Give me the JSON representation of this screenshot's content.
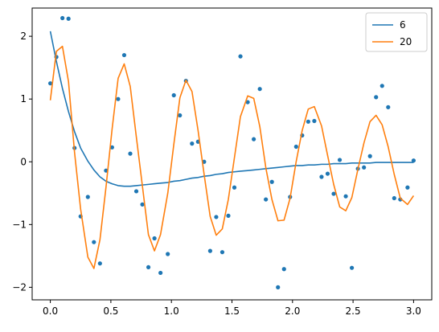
{
  "chart_data": {
    "type": "line",
    "title": "",
    "xlabel": "",
    "ylabel": "",
    "xlim": [
      -0.15,
      3.15
    ],
    "ylim": [
      -2.2,
      2.45
    ],
    "xticks": [
      0.0,
      0.5,
      1.0,
      1.5,
      2.0,
      2.5,
      3.0
    ],
    "xtick_labels": [
      "0.0",
      "0.5",
      "1.0",
      "1.5",
      "2.0",
      "2.5",
      "3.0"
    ],
    "yticks": [
      -2,
      -1,
      0,
      1,
      2
    ],
    "ytick_labels": [
      "−2",
      "−1",
      "0",
      "1",
      "2"
    ],
    "grid": false,
    "legend": {
      "placement": "top-right",
      "entries": [
        "6",
        "20"
      ]
    },
    "colors": {
      "series1": "#1f77b4",
      "series2": "#ff7f0e"
    },
    "scatter": {
      "color": "#1f77b4",
      "points": [
        [
          0.0,
          1.25
        ],
        [
          0.05,
          1.67
        ],
        [
          0.1,
          2.29
        ],
        [
          0.15,
          2.28
        ],
        [
          0.2,
          0.22
        ],
        [
          0.25,
          -0.87
        ],
        [
          0.31,
          -0.56
        ],
        [
          0.36,
          -1.28
        ],
        [
          0.41,
          -1.62
        ],
        [
          0.46,
          -0.14
        ],
        [
          0.51,
          0.23
        ],
        [
          0.56,
          1.0
        ],
        [
          0.61,
          1.7
        ],
        [
          0.66,
          0.13
        ],
        [
          0.71,
          -0.47
        ],
        [
          0.76,
          -0.68
        ],
        [
          0.81,
          -1.68
        ],
        [
          0.86,
          -1.22
        ],
        [
          0.91,
          -1.77
        ],
        [
          0.97,
          -1.47
        ],
        [
          1.02,
          1.06
        ],
        [
          1.07,
          0.74
        ],
        [
          1.12,
          1.29
        ],
        [
          1.17,
          0.29
        ],
        [
          1.22,
          0.32
        ],
        [
          1.27,
          0.0
        ],
        [
          1.32,
          -1.42
        ],
        [
          1.37,
          -0.88
        ],
        [
          1.42,
          -1.44
        ],
        [
          1.47,
          -0.86
        ],
        [
          1.52,
          -0.41
        ],
        [
          1.57,
          1.68
        ],
        [
          1.63,
          0.95
        ],
        [
          1.68,
          0.36
        ],
        [
          1.73,
          1.16
        ],
        [
          1.78,
          -0.6
        ],
        [
          1.83,
          -0.32
        ],
        [
          1.88,
          -2.0
        ],
        [
          1.93,
          -1.71
        ],
        [
          1.98,
          -0.56
        ],
        [
          2.03,
          0.24
        ],
        [
          2.08,
          0.42
        ],
        [
          2.13,
          0.64
        ],
        [
          2.18,
          0.65
        ],
        [
          2.24,
          -0.24
        ],
        [
          2.29,
          -0.19
        ],
        [
          2.34,
          -0.51
        ],
        [
          2.39,
          0.03
        ],
        [
          2.44,
          -0.55
        ],
        [
          2.49,
          -1.69
        ],
        [
          2.54,
          -0.11
        ],
        [
          2.59,
          -0.09
        ],
        [
          2.64,
          0.09
        ],
        [
          2.69,
          1.03
        ],
        [
          2.74,
          1.21
        ],
        [
          2.79,
          0.87
        ],
        [
          2.84,
          -0.58
        ],
        [
          2.89,
          -0.6
        ],
        [
          2.95,
          -0.41
        ],
        [
          3.0,
          0.02
        ]
      ]
    },
    "series": [
      {
        "name": "6",
        "color": "#1f77b4",
        "x": [
          0.0,
          0.05,
          0.1,
          0.15,
          0.2,
          0.25,
          0.31,
          0.36,
          0.41,
          0.46,
          0.51,
          0.56,
          0.61,
          0.66,
          0.71,
          0.76,
          0.81,
          0.86,
          0.91,
          0.97,
          1.02,
          1.07,
          1.12,
          1.17,
          1.22,
          1.27,
          1.32,
          1.37,
          1.42,
          1.47,
          1.52,
          1.57,
          1.63,
          1.68,
          1.73,
          1.78,
          1.83,
          1.88,
          1.93,
          1.98,
          2.03,
          2.08,
          2.13,
          2.18,
          2.24,
          2.29,
          2.34,
          2.39,
          2.44,
          2.49,
          2.54,
          2.59,
          2.64,
          2.69,
          2.74,
          2.79,
          2.84,
          2.89,
          2.95,
          3.0
        ],
        "y": [
          2.08,
          1.6,
          1.17,
          0.8,
          0.48,
          0.22,
          0.01,
          -0.13,
          -0.24,
          -0.31,
          -0.35,
          -0.38,
          -0.39,
          -0.39,
          -0.38,
          -0.37,
          -0.36,
          -0.35,
          -0.34,
          -0.33,
          -0.31,
          -0.3,
          -0.28,
          -0.26,
          -0.25,
          -0.23,
          -0.22,
          -0.2,
          -0.19,
          -0.17,
          -0.16,
          -0.15,
          -0.14,
          -0.13,
          -0.12,
          -0.11,
          -0.1,
          -0.09,
          -0.08,
          -0.07,
          -0.06,
          -0.06,
          -0.05,
          -0.05,
          -0.04,
          -0.04,
          -0.03,
          -0.03,
          -0.03,
          -0.02,
          -0.02,
          -0.02,
          -0.02,
          -0.01,
          -0.01,
          -0.01,
          -0.01,
          -0.01,
          -0.01,
          -0.01
        ]
      },
      {
        "name": "20",
        "color": "#ff7f0e",
        "x": [
          0.0,
          0.05,
          0.1,
          0.15,
          0.2,
          0.25,
          0.31,
          0.36,
          0.41,
          0.46,
          0.51,
          0.56,
          0.61,
          0.66,
          0.71,
          0.76,
          0.81,
          0.86,
          0.91,
          0.97,
          1.02,
          1.07,
          1.12,
          1.17,
          1.22,
          1.27,
          1.32,
          1.37,
          1.42,
          1.47,
          1.52,
          1.57,
          1.63,
          1.68,
          1.73,
          1.78,
          1.83,
          1.88,
          1.93,
          1.98,
          2.03,
          2.08,
          2.13,
          2.18,
          2.24,
          2.29,
          2.34,
          2.39,
          2.44,
          2.49,
          2.54,
          2.59,
          2.64,
          2.69,
          2.74,
          2.79,
          2.84,
          2.89,
          2.95,
          3.0
        ],
        "y": [
          0.98,
          1.76,
          1.84,
          1.28,
          0.15,
          -0.75,
          -1.52,
          -1.7,
          -1.24,
          -0.4,
          0.52,
          1.33,
          1.56,
          1.2,
          0.4,
          -0.38,
          -1.16,
          -1.42,
          -1.16,
          -0.5,
          0.28,
          1.02,
          1.3,
          1.12,
          0.5,
          -0.2,
          -0.87,
          -1.17,
          -1.07,
          -0.6,
          0.06,
          0.72,
          1.05,
          1.01,
          0.56,
          -0.1,
          -0.6,
          -0.94,
          -0.93,
          -0.58,
          0.0,
          0.5,
          0.84,
          0.88,
          0.57,
          0.1,
          -0.36,
          -0.72,
          -0.78,
          -0.57,
          -0.12,
          0.3,
          0.64,
          0.74,
          0.59,
          0.24,
          -0.2,
          -0.58,
          -0.68,
          -0.54
        ]
      }
    ]
  }
}
